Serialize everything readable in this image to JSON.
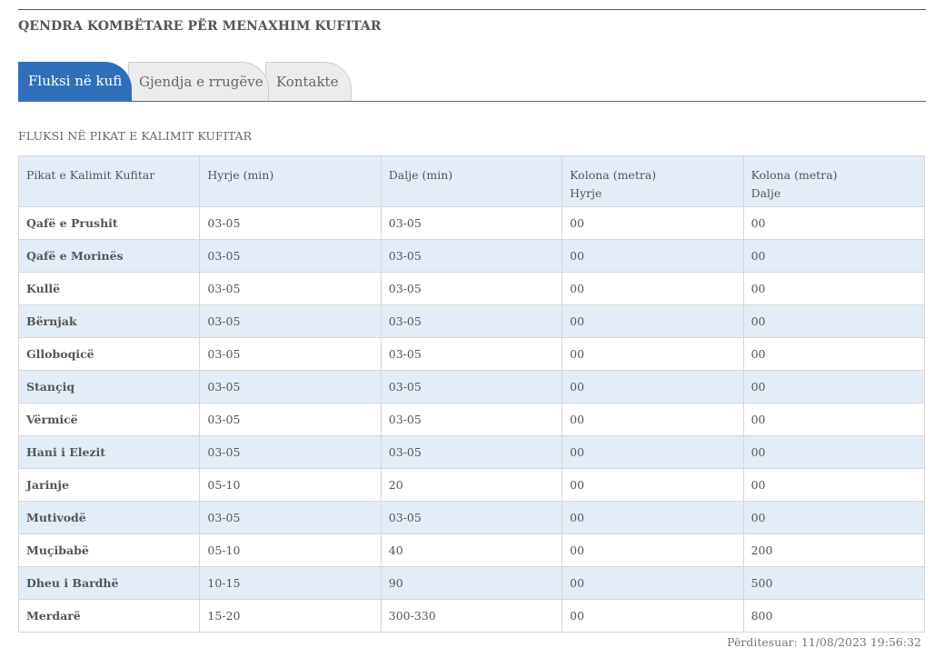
{
  "site_title": "QENDRA KOMBËTARE PËR MENAXHIM KUFITAR",
  "tabs": [
    {
      "label": "Fluksi në kufi",
      "active": true
    },
    {
      "label": "Gjendja e rrugëve",
      "active": false
    },
    {
      "label": "Kontakte",
      "active": false
    }
  ],
  "section_heading": "FLUKSI NË PIKAT E KALIMIT KUFITAR",
  "table": {
    "headers": [
      [
        "Pikat e Kalimit Kufitar"
      ],
      [
        "Hyrje (min)"
      ],
      [
        "Dalje (min)"
      ],
      [
        "Kolona (metra)",
        "Hyrje"
      ],
      [
        "Kolona (metra)",
        "Dalje"
      ]
    ],
    "rows": [
      [
        "Qafë e Prushit",
        "03-05",
        "03-05",
        "00",
        "00"
      ],
      [
        "Qafë e Morinës",
        "03-05",
        "03-05",
        "00",
        "00"
      ],
      [
        "Kullë",
        "03-05",
        "03-05",
        "00",
        "00"
      ],
      [
        "Bërnjak",
        "03-05",
        "03-05",
        "00",
        "00"
      ],
      [
        "Glloboqicë",
        "03-05",
        "03-05",
        "00",
        "00"
      ],
      [
        "Stançiq",
        "03-05",
        "03-05",
        "00",
        "00"
      ],
      [
        "Vërmicë",
        "03-05",
        "03-05",
        "00",
        "00"
      ],
      [
        "Hani i Elezit",
        "03-05",
        "03-05",
        "00",
        "00"
      ],
      [
        "Jarinje",
        "05-10",
        "20",
        "00",
        "00"
      ],
      [
        "Mutivodë",
        "03-05",
        "03-05",
        "00",
        "00"
      ],
      [
        "Muçibabë",
        "05-10",
        "40",
        "00",
        "200"
      ],
      [
        "Dheu i Bardhë",
        "10-15",
        "90",
        "00",
        "500"
      ],
      [
        "Merdarë",
        "15-20",
        "300-330",
        "00",
        "800"
      ]
    ]
  },
  "updated": "Përditesuar: 11/08/2023 19:56:32",
  "colors": {
    "accent": "#2f6fba",
    "row_alt": "#e3edf7"
  }
}
